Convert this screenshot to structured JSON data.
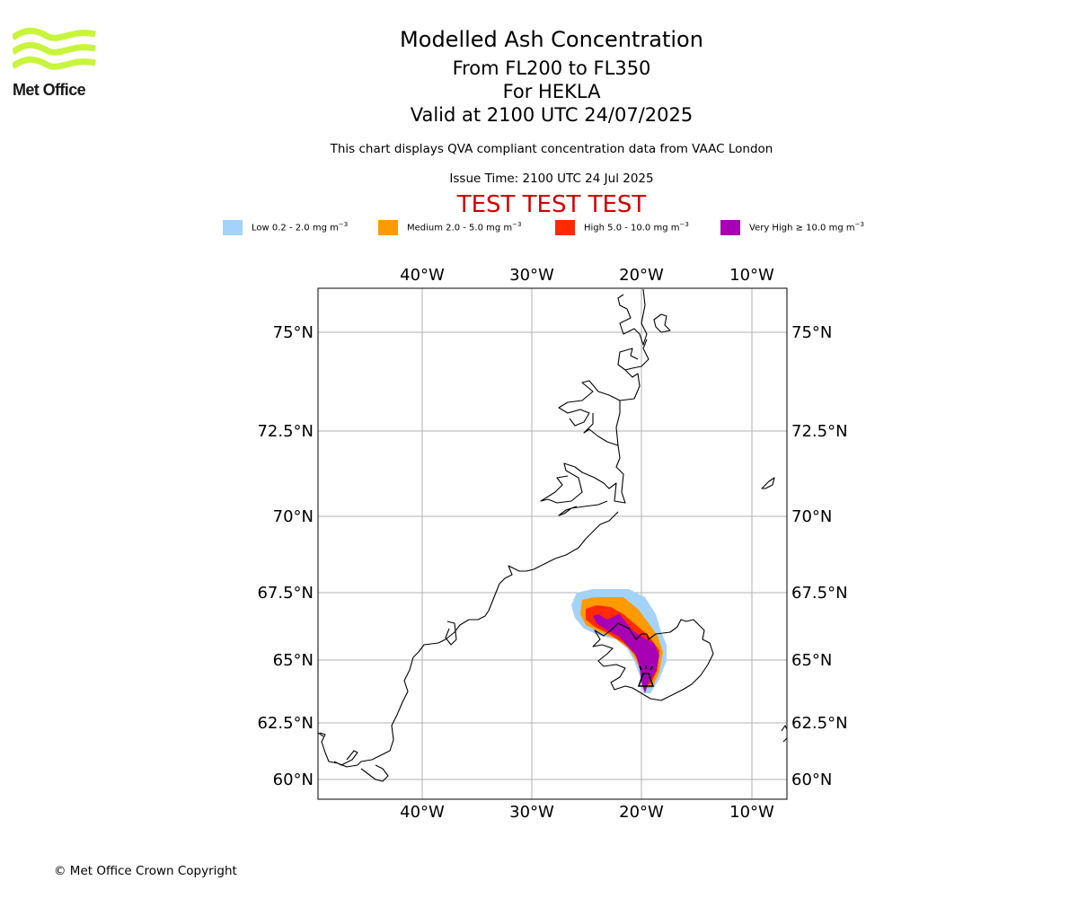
{
  "branding": {
    "logo_text": "Met Office",
    "logo_color": "#c8f53a"
  },
  "header": {
    "title": "Modelled Ash Concentration",
    "levels": "From FL200 to FL350",
    "volcano": "For HEKLA",
    "valid": "Valid at 2100 UTC 24/07/2025",
    "description": "This chart displays QVA compliant concentration data from VAAC London",
    "issue_time": "Issue Time: 2100 UTC 24 Jul 2025",
    "test_banner": "TEST TEST TEST",
    "test_color": "#d40000"
  },
  "legend": [
    {
      "label": "Low 0.2 - 2.0 mg m",
      "unit_exp": "−3",
      "color": "#a3d2fb"
    },
    {
      "label": "Medium 2.0 - 5.0 mg m",
      "unit_exp": "−3",
      "color": "#ff9a00"
    },
    {
      "label": "High 5.0 - 10.0 mg m",
      "unit_exp": "−3",
      "color": "#ff2a00"
    },
    {
      "label": "Very High  ≥  10.0 mg m",
      "unit_exp": "−3",
      "color": "#a800b4"
    }
  ],
  "map": {
    "lon_ticks": [
      "40°W",
      "30°W",
      "20°W",
      "10°W"
    ],
    "lat_ticks": [
      "75°N",
      "72.5°N",
      "70°N",
      "67.5°N",
      "65°N",
      "62.5°N",
      "60°N"
    ],
    "grid": true,
    "volcano_marker": "volcano-icon"
  },
  "footer": {
    "copyright": "© Met Office Crown Copyright"
  }
}
